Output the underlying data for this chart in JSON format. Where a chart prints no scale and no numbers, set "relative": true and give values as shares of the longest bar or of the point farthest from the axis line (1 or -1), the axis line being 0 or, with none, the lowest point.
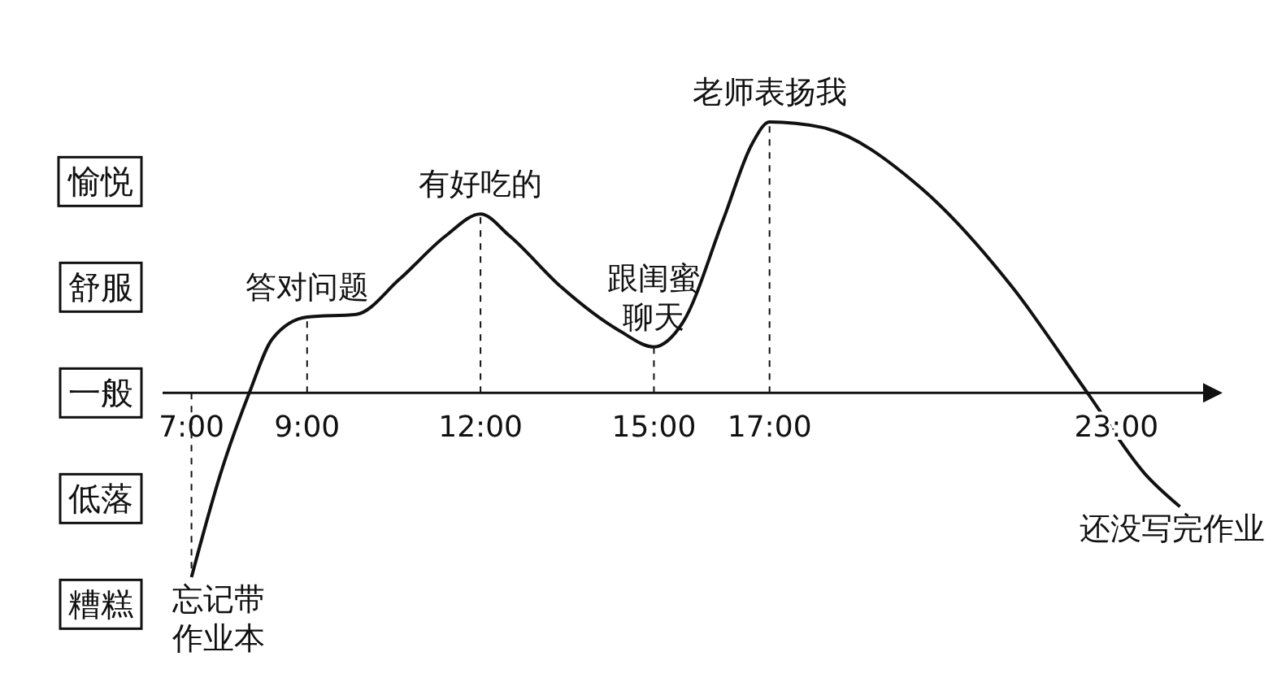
{
  "chart_data": {
    "type": "line",
    "relative": true,
    "x": [
      7,
      7.5,
      8,
      8.4,
      9,
      9.85,
      10.6,
      11.4,
      12,
      12.5,
      13.4,
      14.4,
      15,
      15.5,
      16.2,
      16.7,
      17,
      17.9,
      19.6,
      21.2,
      22.5,
      23.5,
      24.1
    ],
    "values": [
      -0.68,
      -0.3,
      0,
      0.2,
      0.28,
      0.29,
      0.42,
      0.58,
      0.66,
      0.58,
      0.39,
      0.23,
      0.17,
      0.26,
      0.64,
      0.92,
      1,
      0.98,
      0.76,
      0.39,
      0,
      -0.3,
      -0.42
    ],
    "color": "#111111",
    "marker": "none",
    "line_style": "solid",
    "xlim": [
      6.5,
      24.5
    ],
    "xticks": [
      {
        "value": 7,
        "label": "7:00"
      },
      {
        "value": 9,
        "label": "9:00"
      },
      {
        "value": 12,
        "label": "12:00"
      },
      {
        "value": 15,
        "label": "15:00"
      },
      {
        "value": 17,
        "label": "17:00"
      },
      {
        "value": 23,
        "label": "23:00"
      }
    ],
    "annotations": [
      "愉悦",
      "舒服",
      "一般",
      "低落",
      "糟糕",
      {
        "text": "忘记带作业本",
        "x": 7,
        "y": -0.68
      },
      {
        "text": "答对问题",
        "x": 9,
        "y": 0.28
      },
      {
        "text": "有好吃的",
        "x": 12,
        "y": 0.66
      },
      {
        "text": "跟闺蜜聊天",
        "x": 15,
        "y": 0.17
      },
      {
        "text": "老师表扬我",
        "x": 17,
        "y": 1
      },
      {
        "text": "还没写完作业",
        "x": 24.1,
        "y": -0.42
      }
    ]
  }
}
